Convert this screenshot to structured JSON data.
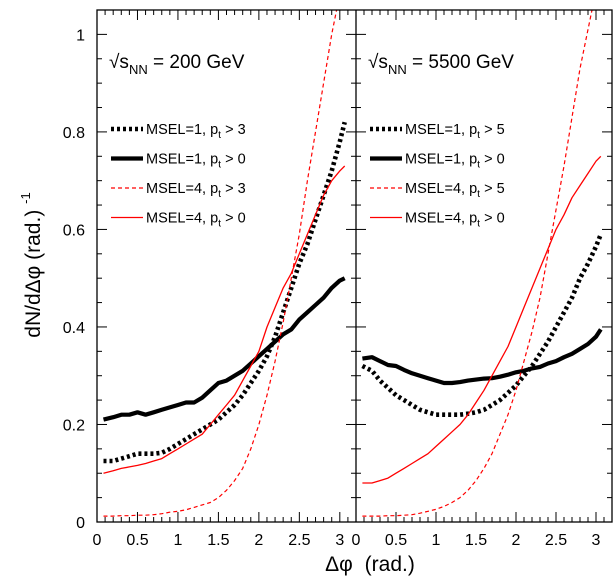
{
  "chart_data": {
    "type": "line",
    "xlabel": {
      "symbol": "Δφ",
      "unit": "(rad.)"
    },
    "ylabel": {
      "main": "dN/dΔφ (rad.)",
      "exponent": "-1"
    },
    "xlim": [
      0,
      3.2
    ],
    "ylim": [
      0,
      1.05
    ],
    "x_ticks": [
      "0",
      "0.5",
      "1",
      "1.5",
      "2",
      "2.5",
      "3"
    ],
    "y_ticks": [
      "0",
      "0.2",
      "0.4",
      "0.6",
      "0.8",
      "1"
    ],
    "x_tick_values": [
      0,
      0.5,
      1,
      1.5,
      2,
      2.5,
      3
    ],
    "y_tick_values": [
      0,
      0.2,
      0.4,
      0.6,
      0.8,
      1
    ],
    "reference_line": {
      "y": 0,
      "style": "dash-dot"
    },
    "styles": {
      "thick_dotted": {
        "color": "#000000",
        "width": 4.6,
        "dash": "3,3"
      },
      "thick_solid": {
        "color": "#000000",
        "width": 4.2,
        "dash": ""
      },
      "thin_dashed": {
        "color": "#ff0000",
        "width": 1.2,
        "dash": "4,3"
      },
      "thin_solid": {
        "color": "#ff0000",
        "width": 1.3,
        "dash": ""
      }
    },
    "panels": [
      {
        "energy": {
          "prefix": "√s",
          "subscript": "NN",
          "suffix": " = 200 GeV"
        },
        "legend": [
          {
            "label": "MSEL=1, ",
            "pt_var": "p",
            "pt_sub": "t",
            "cut": " > 3",
            "style": "thick_dotted"
          },
          {
            "label": "MSEL=1, ",
            "pt_var": "p",
            "pt_sub": "t",
            "cut": " > 0",
            "style": "thick_solid"
          },
          {
            "label": "MSEL=4, ",
            "pt_var": "p",
            "pt_sub": "t",
            "cut": " > 3",
            "style": "thin_dashed"
          },
          {
            "label": "MSEL=4, ",
            "pt_var": "p",
            "pt_sub": "t",
            "cut": " > 0",
            "style": "thin_solid"
          }
        ],
        "series": [
          {
            "name": "MSEL=1, pt > 3",
            "style": "thick_dotted",
            "x": [
              0.08,
              0.2,
              0.3,
              0.4,
              0.5,
              0.6,
              0.7,
              0.8,
              0.9,
              1.0,
              1.1,
              1.2,
              1.3,
              1.4,
              1.5,
              1.6,
              1.7,
              1.8,
              1.9,
              2.0,
              2.1,
              2.2,
              2.3,
              2.4,
              2.5,
              2.6,
              2.7,
              2.8,
              2.9,
              3.0,
              3.06
            ],
            "y": [
              0.125,
              0.125,
              0.13,
              0.135,
              0.14,
              0.14,
              0.14,
              0.142,
              0.15,
              0.16,
              0.17,
              0.18,
              0.19,
              0.2,
              0.21,
              0.225,
              0.24,
              0.26,
              0.285,
              0.31,
              0.34,
              0.38,
              0.43,
              0.48,
              0.53,
              0.57,
              0.62,
              0.67,
              0.72,
              0.78,
              0.82
            ]
          },
          {
            "name": "MSEL=1, pt > 0",
            "style": "thick_solid",
            "x": [
              0.08,
              0.2,
              0.3,
              0.4,
              0.5,
              0.6,
              0.7,
              0.8,
              0.9,
              1.0,
              1.1,
              1.2,
              1.3,
              1.4,
              1.5,
              1.6,
              1.7,
              1.8,
              1.9,
              2.0,
              2.1,
              2.2,
              2.3,
              2.4,
              2.5,
              2.6,
              2.7,
              2.8,
              2.9,
              3.0,
              3.06
            ],
            "y": [
              0.21,
              0.215,
              0.22,
              0.22,
              0.225,
              0.22,
              0.225,
              0.23,
              0.235,
              0.24,
              0.245,
              0.245,
              0.255,
              0.27,
              0.285,
              0.29,
              0.3,
              0.31,
              0.325,
              0.34,
              0.355,
              0.37,
              0.385,
              0.395,
              0.415,
              0.43,
              0.445,
              0.46,
              0.48,
              0.495,
              0.5
            ]
          },
          {
            "name": "MSEL=4, pt > 3",
            "style": "thin_dashed",
            "x": [
              0.08,
              0.2,
              0.3,
              0.4,
              0.5,
              0.6,
              0.7,
              0.8,
              0.9,
              1.0,
              1.1,
              1.2,
              1.3,
              1.4,
              1.5,
              1.6,
              1.7,
              1.8,
              1.9,
              2.0,
              2.1,
              2.2,
              2.3,
              2.4,
              2.5,
              2.6,
              2.7,
              2.8,
              2.9,
              2.96
            ],
            "y": [
              0.012,
              0.012,
              0.013,
              0.013,
              0.014,
              0.014,
              0.015,
              0.017,
              0.02,
              0.022,
              0.025,
              0.03,
              0.035,
              0.04,
              0.05,
              0.065,
              0.085,
              0.11,
              0.15,
              0.2,
              0.26,
              0.33,
              0.41,
              0.5,
              0.59,
              0.7,
              0.8,
              0.9,
              1.0,
              1.05
            ]
          },
          {
            "name": "MSEL=4, pt > 0",
            "style": "thin_solid",
            "x": [
              0.08,
              0.2,
              0.3,
              0.4,
              0.5,
              0.6,
              0.7,
              0.8,
              0.9,
              1.0,
              1.1,
              1.2,
              1.3,
              1.4,
              1.5,
              1.6,
              1.7,
              1.8,
              1.9,
              2.0,
              2.1,
              2.2,
              2.3,
              2.4,
              2.5,
              2.6,
              2.7,
              2.8,
              2.9,
              3.0,
              3.06
            ],
            "y": [
              0.1,
              0.105,
              0.11,
              0.113,
              0.116,
              0.12,
              0.125,
              0.13,
              0.14,
              0.15,
              0.16,
              0.17,
              0.18,
              0.2,
              0.22,
              0.24,
              0.26,
              0.29,
              0.32,
              0.35,
              0.4,
              0.44,
              0.48,
              0.51,
              0.55,
              0.59,
              0.63,
              0.67,
              0.7,
              0.72,
              0.73
            ]
          }
        ]
      },
      {
        "energy": {
          "prefix": "√s",
          "subscript": "NN",
          "suffix": " = 5500 GeV"
        },
        "legend": [
          {
            "label": "MSEL=1, ",
            "pt_var": "p",
            "pt_sub": "t",
            "cut": " > 5",
            "style": "thick_dotted"
          },
          {
            "label": "MSEL=1, ",
            "pt_var": "p",
            "pt_sub": "t",
            "cut": " > 0",
            "style": "thick_solid"
          },
          {
            "label": "MSEL=4, ",
            "pt_var": "p",
            "pt_sub": "t",
            "cut": " > 5",
            "style": "thin_dashed"
          },
          {
            "label": "MSEL=4, ",
            "pt_var": "p",
            "pt_sub": "t",
            "cut": " > 0",
            "style": "thin_solid"
          }
        ],
        "series": [
          {
            "name": "MSEL=1, pt > 5",
            "style": "thick_dotted",
            "x": [
              0.08,
              0.2,
              0.3,
              0.4,
              0.5,
              0.6,
              0.7,
              0.8,
              0.9,
              1.0,
              1.1,
              1.2,
              1.3,
              1.4,
              1.5,
              1.6,
              1.7,
              1.8,
              1.9,
              2.0,
              2.1,
              2.2,
              2.3,
              2.4,
              2.5,
              2.6,
              2.7,
              2.8,
              2.9,
              3.0,
              3.06
            ],
            "y": [
              0.32,
              0.31,
              0.29,
              0.275,
              0.26,
              0.25,
              0.24,
              0.23,
              0.225,
              0.22,
              0.22,
              0.22,
              0.22,
              0.222,
              0.225,
              0.23,
              0.24,
              0.25,
              0.265,
              0.28,
              0.3,
              0.32,
              0.345,
              0.37,
              0.4,
              0.43,
              0.46,
              0.5,
              0.53,
              0.565,
              0.59
            ]
          },
          {
            "name": "MSEL=1, pt > 0",
            "style": "thick_solid",
            "x": [
              0.08,
              0.2,
              0.3,
              0.4,
              0.5,
              0.6,
              0.7,
              0.8,
              0.9,
              1.0,
              1.1,
              1.2,
              1.3,
              1.4,
              1.5,
              1.6,
              1.7,
              1.8,
              1.9,
              2.0,
              2.1,
              2.2,
              2.3,
              2.4,
              2.5,
              2.6,
              2.7,
              2.8,
              2.9,
              3.0,
              3.06
            ],
            "y": [
              0.335,
              0.338,
              0.33,
              0.322,
              0.32,
              0.312,
              0.305,
              0.3,
              0.295,
              0.29,
              0.285,
              0.285,
              0.287,
              0.29,
              0.292,
              0.294,
              0.295,
              0.298,
              0.302,
              0.307,
              0.31,
              0.315,
              0.318,
              0.325,
              0.33,
              0.338,
              0.345,
              0.355,
              0.365,
              0.38,
              0.395
            ]
          },
          {
            "name": "MSEL=4, pt > 5",
            "style": "thin_dashed",
            "x": [
              0.08,
              0.2,
              0.3,
              0.4,
              0.5,
              0.6,
              0.7,
              0.8,
              0.9,
              1.0,
              1.1,
              1.2,
              1.3,
              1.4,
              1.5,
              1.6,
              1.7,
              1.8,
              1.9,
              2.0,
              2.1,
              2.2,
              2.3,
              2.4,
              2.5,
              2.6,
              2.7,
              2.8,
              2.9,
              2.95
            ],
            "y": [
              0.012,
              0.012,
              0.012,
              0.013,
              0.013,
              0.014,
              0.015,
              0.018,
              0.022,
              0.026,
              0.032,
              0.04,
              0.05,
              0.065,
              0.085,
              0.11,
              0.14,
              0.18,
              0.22,
              0.27,
              0.33,
              0.39,
              0.46,
              0.55,
              0.64,
              0.73,
              0.83,
              0.93,
              1.01,
              1.05
            ]
          },
          {
            "name": "MSEL=4, pt > 0",
            "style": "thin_solid",
            "x": [
              0.08,
              0.2,
              0.3,
              0.4,
              0.5,
              0.6,
              0.7,
              0.8,
              0.9,
              1.0,
              1.1,
              1.2,
              1.3,
              1.4,
              1.5,
              1.6,
              1.7,
              1.8,
              1.9,
              2.0,
              2.1,
              2.2,
              2.3,
              2.4,
              2.5,
              2.6,
              2.7,
              2.8,
              2.9,
              3.0,
              3.06
            ],
            "y": [
              0.08,
              0.08,
              0.085,
              0.09,
              0.1,
              0.11,
              0.12,
              0.13,
              0.14,
              0.155,
              0.17,
              0.185,
              0.2,
              0.22,
              0.245,
              0.27,
              0.3,
              0.33,
              0.36,
              0.4,
              0.44,
              0.48,
              0.52,
              0.56,
              0.6,
              0.63,
              0.665,
              0.69,
              0.715,
              0.74,
              0.75
            ]
          }
        ]
      }
    ]
  }
}
